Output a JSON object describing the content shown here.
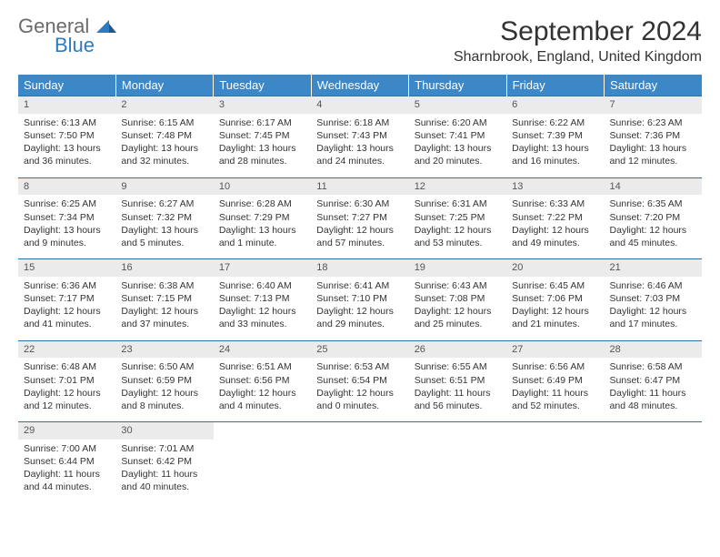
{
  "logo": {
    "general": "General",
    "blue": "Blue"
  },
  "title": "September 2024",
  "location": "Sharnbrook, England, United Kingdom",
  "colors": {
    "header_bg": "#3b87c8",
    "header_text": "#ffffff",
    "daynum_bg": "#ebebeb",
    "row_border": "#2f6fa8",
    "logo_gray": "#6b6b6b",
    "logo_blue": "#2f7bbf"
  },
  "weekdays": [
    "Sunday",
    "Monday",
    "Tuesday",
    "Wednesday",
    "Thursday",
    "Friday",
    "Saturday"
  ],
  "days": [
    {
      "n": "1",
      "sunrise": "Sunrise: 6:13 AM",
      "sunset": "Sunset: 7:50 PM",
      "daylight": "Daylight: 13 hours and 36 minutes."
    },
    {
      "n": "2",
      "sunrise": "Sunrise: 6:15 AM",
      "sunset": "Sunset: 7:48 PM",
      "daylight": "Daylight: 13 hours and 32 minutes."
    },
    {
      "n": "3",
      "sunrise": "Sunrise: 6:17 AM",
      "sunset": "Sunset: 7:45 PM",
      "daylight": "Daylight: 13 hours and 28 minutes."
    },
    {
      "n": "4",
      "sunrise": "Sunrise: 6:18 AM",
      "sunset": "Sunset: 7:43 PM",
      "daylight": "Daylight: 13 hours and 24 minutes."
    },
    {
      "n": "5",
      "sunrise": "Sunrise: 6:20 AM",
      "sunset": "Sunset: 7:41 PM",
      "daylight": "Daylight: 13 hours and 20 minutes."
    },
    {
      "n": "6",
      "sunrise": "Sunrise: 6:22 AM",
      "sunset": "Sunset: 7:39 PM",
      "daylight": "Daylight: 13 hours and 16 minutes."
    },
    {
      "n": "7",
      "sunrise": "Sunrise: 6:23 AM",
      "sunset": "Sunset: 7:36 PM",
      "daylight": "Daylight: 13 hours and 12 minutes."
    },
    {
      "n": "8",
      "sunrise": "Sunrise: 6:25 AM",
      "sunset": "Sunset: 7:34 PM",
      "daylight": "Daylight: 13 hours and 9 minutes."
    },
    {
      "n": "9",
      "sunrise": "Sunrise: 6:27 AM",
      "sunset": "Sunset: 7:32 PM",
      "daylight": "Daylight: 13 hours and 5 minutes."
    },
    {
      "n": "10",
      "sunrise": "Sunrise: 6:28 AM",
      "sunset": "Sunset: 7:29 PM",
      "daylight": "Daylight: 13 hours and 1 minute."
    },
    {
      "n": "11",
      "sunrise": "Sunrise: 6:30 AM",
      "sunset": "Sunset: 7:27 PM",
      "daylight": "Daylight: 12 hours and 57 minutes."
    },
    {
      "n": "12",
      "sunrise": "Sunrise: 6:31 AM",
      "sunset": "Sunset: 7:25 PM",
      "daylight": "Daylight: 12 hours and 53 minutes."
    },
    {
      "n": "13",
      "sunrise": "Sunrise: 6:33 AM",
      "sunset": "Sunset: 7:22 PM",
      "daylight": "Daylight: 12 hours and 49 minutes."
    },
    {
      "n": "14",
      "sunrise": "Sunrise: 6:35 AM",
      "sunset": "Sunset: 7:20 PM",
      "daylight": "Daylight: 12 hours and 45 minutes."
    },
    {
      "n": "15",
      "sunrise": "Sunrise: 6:36 AM",
      "sunset": "Sunset: 7:17 PM",
      "daylight": "Daylight: 12 hours and 41 minutes."
    },
    {
      "n": "16",
      "sunrise": "Sunrise: 6:38 AM",
      "sunset": "Sunset: 7:15 PM",
      "daylight": "Daylight: 12 hours and 37 minutes."
    },
    {
      "n": "17",
      "sunrise": "Sunrise: 6:40 AM",
      "sunset": "Sunset: 7:13 PM",
      "daylight": "Daylight: 12 hours and 33 minutes."
    },
    {
      "n": "18",
      "sunrise": "Sunrise: 6:41 AM",
      "sunset": "Sunset: 7:10 PM",
      "daylight": "Daylight: 12 hours and 29 minutes."
    },
    {
      "n": "19",
      "sunrise": "Sunrise: 6:43 AM",
      "sunset": "Sunset: 7:08 PM",
      "daylight": "Daylight: 12 hours and 25 minutes."
    },
    {
      "n": "20",
      "sunrise": "Sunrise: 6:45 AM",
      "sunset": "Sunset: 7:06 PM",
      "daylight": "Daylight: 12 hours and 21 minutes."
    },
    {
      "n": "21",
      "sunrise": "Sunrise: 6:46 AM",
      "sunset": "Sunset: 7:03 PM",
      "daylight": "Daylight: 12 hours and 17 minutes."
    },
    {
      "n": "22",
      "sunrise": "Sunrise: 6:48 AM",
      "sunset": "Sunset: 7:01 PM",
      "daylight": "Daylight: 12 hours and 12 minutes."
    },
    {
      "n": "23",
      "sunrise": "Sunrise: 6:50 AM",
      "sunset": "Sunset: 6:59 PM",
      "daylight": "Daylight: 12 hours and 8 minutes."
    },
    {
      "n": "24",
      "sunrise": "Sunrise: 6:51 AM",
      "sunset": "Sunset: 6:56 PM",
      "daylight": "Daylight: 12 hours and 4 minutes."
    },
    {
      "n": "25",
      "sunrise": "Sunrise: 6:53 AM",
      "sunset": "Sunset: 6:54 PM",
      "daylight": "Daylight: 12 hours and 0 minutes."
    },
    {
      "n": "26",
      "sunrise": "Sunrise: 6:55 AM",
      "sunset": "Sunset: 6:51 PM",
      "daylight": "Daylight: 11 hours and 56 minutes."
    },
    {
      "n": "27",
      "sunrise": "Sunrise: 6:56 AM",
      "sunset": "Sunset: 6:49 PM",
      "daylight": "Daylight: 11 hours and 52 minutes."
    },
    {
      "n": "28",
      "sunrise": "Sunrise: 6:58 AM",
      "sunset": "Sunset: 6:47 PM",
      "daylight": "Daylight: 11 hours and 48 minutes."
    },
    {
      "n": "29",
      "sunrise": "Sunrise: 7:00 AM",
      "sunset": "Sunset: 6:44 PM",
      "daylight": "Daylight: 11 hours and 44 minutes."
    },
    {
      "n": "30",
      "sunrise": "Sunrise: 7:01 AM",
      "sunset": "Sunset: 6:42 PM",
      "daylight": "Daylight: 11 hours and 40 minutes."
    }
  ]
}
